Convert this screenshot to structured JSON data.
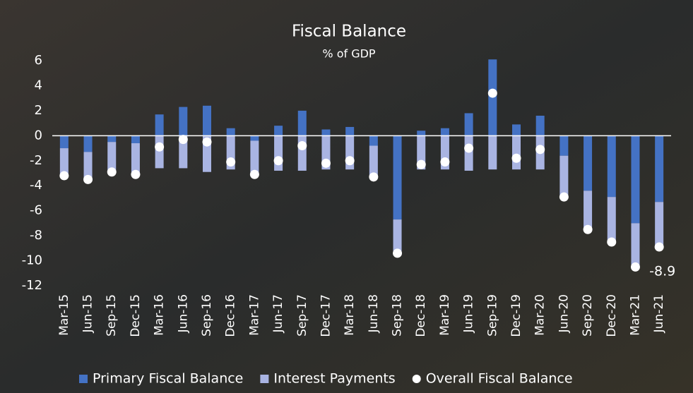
{
  "chart_data": {
    "type": "bar",
    "title": "Fiscal Balance",
    "subtitle": "% of GDP",
    "categories": [
      "Mar-15",
      "Jun-15",
      "Sep-15",
      "Dec-15",
      "Mar-16",
      "Jun-16",
      "Sep-16",
      "Dec-16",
      "Mar-17",
      "Jun-17",
      "Sep-17",
      "Dec-17",
      "Mar-18",
      "Jun-18",
      "Sep-18",
      "Dec-18",
      "Mar-19",
      "Jun-19",
      "Sep-19",
      "Dec-19",
      "Mar-20",
      "Jun-20",
      "Sep-20",
      "Dec-20",
      "Mar-21",
      "Jun-21"
    ],
    "series": [
      {
        "name": "Primary Fiscal Balance",
        "color": "#4472c4",
        "values": [
          -1.0,
          -1.3,
          -0.5,
          -0.6,
          1.7,
          2.3,
          2.4,
          0.6,
          -0.4,
          0.8,
          2.0,
          0.5,
          0.7,
          -0.8,
          -6.7,
          0.4,
          0.6,
          1.8,
          6.1,
          0.9,
          1.6,
          -1.6,
          -4.4,
          -4.9,
          -7.0,
          -5.3
        ]
      },
      {
        "name": "Interest Payments",
        "color": "#a9b4e2",
        "values": [
          -2.2,
          -2.2,
          -2.4,
          -2.5,
          -2.6,
          -2.6,
          -2.9,
          -2.7,
          -2.7,
          -2.8,
          -2.8,
          -2.7,
          -2.7,
          -2.5,
          -2.7,
          -2.7,
          -2.7,
          -2.8,
          -2.7,
          -2.7,
          -2.7,
          -3.3,
          -3.1,
          -3.6,
          -3.5,
          -3.6
        ]
      },
      {
        "name": "Overall Fiscal Balance",
        "color": "#ffffff",
        "values": [
          -3.2,
          -3.5,
          -2.9,
          -3.1,
          -0.9,
          -0.3,
          -0.5,
          -2.1,
          -3.1,
          -2.0,
          -0.8,
          -2.2,
          -2.0,
          -3.3,
          -9.4,
          -2.3,
          -2.1,
          -1.0,
          3.4,
          -1.8,
          -1.1,
          -4.9,
          -7.5,
          -8.5,
          -10.5,
          -8.9
        ],
        "value_labels": [
          null,
          null,
          null,
          null,
          null,
          null,
          null,
          null,
          null,
          null,
          null,
          null,
          null,
          null,
          null,
          null,
          null,
          null,
          null,
          null,
          null,
          null,
          null,
          null,
          null,
          "-8.9"
        ]
      }
    ],
    "ylim": [
      -12,
      6
    ],
    "yticks": [
      -12,
      -10,
      -8,
      -6,
      -4,
      -2,
      0,
      2,
      4,
      6
    ]
  }
}
